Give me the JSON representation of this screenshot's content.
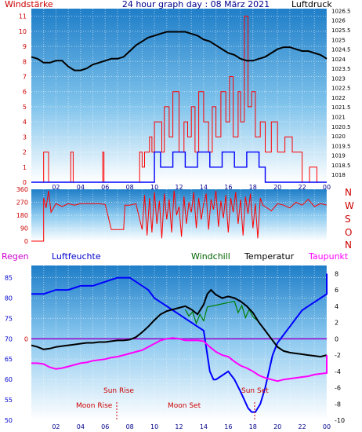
{
  "header": {
    "left_label": "Windstärke",
    "title": "24 hour graph day : 08 März 2021",
    "right_label": "Luftdruck"
  },
  "direction_labels": [
    "N",
    "W",
    "S",
    "O",
    "N"
  ],
  "bottom_header": {
    "regen": "Regen",
    "luftfeuchte": "Luftfeuchte",
    "windchill": "Windchill",
    "temperatur": "Temperatur",
    "taupunkt": "Taupunkt"
  },
  "annotations": {
    "sun_rise": "Sun Rise",
    "sun_set": "Sun Set",
    "moon_rise": "Moon Rise",
    "moon_set": "Moon Set"
  },
  "colors": {
    "panel_top": "#1f7ec8",
    "panel_bottom": "#ffffff",
    "wind": "#ff0000",
    "gust": "#0000ff",
    "pressure": "#000000",
    "humidity": "#0000ff",
    "temperature": "#000000",
    "windchill": "#008000",
    "dewpoint": "#ff00ff",
    "rain_zero": "#cc0000",
    "dir_labels": "#cc0000"
  },
  "chart_data": [
    {
      "type": "line",
      "name": "wind-pressure",
      "x_ticks": [
        "02",
        "04",
        "06",
        "08",
        "10",
        "12",
        "14",
        "16",
        "18",
        "20",
        "22",
        "00"
      ],
      "left_ticks": [
        "0",
        "1",
        "2",
        "3",
        "4",
        "5",
        "6",
        "7",
        "8",
        "9",
        "10",
        "11"
      ],
      "right_ticks": [
        "1018",
        "1018.5",
        "1019",
        "1019.5",
        "1020",
        "1020.5",
        "1021",
        "1021.5",
        "1022",
        "1022.5",
        "1023",
        "1023.5",
        "1024",
        "1024.5",
        "1025",
        "1025.5",
        "1026",
        "1026.5"
      ],
      "ylim_left": [
        0,
        11.5
      ],
      "ylim_right": [
        1017.6,
        1026.6
      ],
      "xlim": [
        0,
        24
      ],
      "pressure": {
        "x": [
          0,
          0.5,
          1,
          1.5,
          2,
          2.5,
          3,
          3.5,
          4,
          4.5,
          5,
          5.5,
          6,
          6.5,
          7,
          7.5,
          8,
          8.5,
          9,
          9.5,
          10,
          10.5,
          11,
          11.5,
          12,
          12.5,
          13,
          13.5,
          14,
          14.5,
          15,
          15.5,
          16,
          16.5,
          17,
          17.5,
          18,
          18.5,
          19,
          19.5,
          20,
          20.5,
          21,
          21.5,
          22,
          22.5,
          23,
          23.5,
          24
        ],
        "y": [
          1024.1,
          1024.0,
          1023.8,
          1023.8,
          1023.9,
          1023.9,
          1023.6,
          1023.4,
          1023.4,
          1023.5,
          1023.7,
          1023.8,
          1023.9,
          1024.0,
          1024.0,
          1024.1,
          1024.4,
          1024.7,
          1024.9,
          1025.1,
          1025.2,
          1025.3,
          1025.4,
          1025.4,
          1025.4,
          1025.4,
          1025.3,
          1025.2,
          1025.0,
          1024.9,
          1024.7,
          1024.5,
          1024.3,
          1024.2,
          1024.0,
          1023.9,
          1023.9,
          1024.0,
          1024.1,
          1024.3,
          1024.5,
          1024.6,
          1024.6,
          1024.5,
          1024.4,
          1024.4,
          1024.3,
          1024.2,
          1024.0
        ]
      },
      "wind": {
        "x": [
          0,
          1.0,
          1.0,
          1.4,
          1.4,
          3.2,
          3.2,
          3.4,
          3.4,
          5.8,
          5.8,
          5.9,
          5.9,
          8.8,
          8.8,
          9.0,
          9.0,
          9.2,
          9.2,
          9.6,
          9.6,
          9.8,
          9.8,
          10.0,
          10.0,
          10.6,
          10.6,
          10.8,
          10.8,
          11.2,
          11.2,
          11.5,
          11.5,
          12.0,
          12.0,
          12.4,
          12.4,
          12.7,
          12.7,
          13.0,
          13.0,
          13.3,
          13.3,
          13.6,
          13.6,
          14.0,
          14.0,
          14.4,
          14.4,
          14.7,
          14.7,
          15.0,
          15.0,
          15.4,
          15.4,
          15.8,
          15.8,
          16.1,
          16.1,
          16.4,
          16.4,
          16.8,
          16.8,
          17.0,
          17.0,
          17.3,
          17.3,
          17.6,
          17.6,
          17.9,
          17.9,
          18.2,
          18.2,
          18.6,
          18.6,
          19.0,
          19.0,
          19.5,
          19.5,
          20.0,
          20.0,
          20.6,
          20.6,
          21.2,
          21.2,
          22.0,
          22.0,
          22.6,
          22.6,
          23.2,
          23.2,
          24
        ],
        "y": [
          0,
          0,
          2,
          2,
          0,
          0,
          2,
          2,
          0,
          0,
          2,
          2,
          0,
          0,
          2,
          2,
          1,
          1,
          2,
          2,
          3,
          3,
          2,
          2,
          4,
          4,
          2,
          2,
          5,
          5,
          3,
          3,
          6,
          6,
          2,
          2,
          4,
          4,
          3,
          3,
          5,
          5,
          2,
          2,
          6,
          6,
          4,
          4,
          2,
          2,
          5,
          5,
          3,
          3,
          6,
          6,
          4,
          4,
          7,
          7,
          3,
          3,
          6,
          6,
          4,
          4,
          11,
          11,
          5,
          5,
          6,
          6,
          3,
          3,
          4,
          4,
          2,
          2,
          4,
          4,
          2,
          2,
          3,
          3,
          2,
          2,
          0,
          0,
          1,
          1,
          0,
          0
        ]
      },
      "gust": {
        "x": [
          0,
          10.0,
          10.0,
          10.5,
          10.5,
          11.5,
          11.5,
          12.5,
          12.5,
          13.5,
          13.5,
          14.5,
          14.5,
          15.5,
          15.5,
          16.5,
          16.5,
          17.5,
          17.5,
          18.5,
          18.5,
          19.0,
          19.0,
          24
        ],
        "y": [
          0,
          0,
          2,
          2,
          1,
          1,
          2,
          2,
          1,
          1,
          2,
          2,
          1,
          1,
          2,
          2,
          1,
          1,
          2,
          2,
          1,
          1,
          0,
          0
        ]
      }
    },
    {
      "type": "line",
      "name": "wind-direction",
      "y_ticks": [
        "0",
        "90",
        "180",
        "270",
        "360"
      ],
      "ylim": [
        0,
        360
      ],
      "xlim": [
        0,
        24
      ],
      "direction": {
        "x": [
          0,
          1.0,
          1.0,
          1.2,
          1.4,
          1.6,
          2.0,
          2.5,
          3.0,
          3.5,
          4.0,
          5.0,
          5.5,
          6.0,
          6.5,
          7.0,
          7.5,
          7.6,
          8.0,
          8.5,
          9.0,
          9.2,
          9.4,
          9.6,
          9.8,
          10.0,
          10.2,
          10.4,
          10.6,
          10.8,
          11.0,
          11.2,
          11.4,
          11.6,
          11.8,
          12.0,
          12.2,
          12.4,
          12.6,
          12.8,
          13.0,
          13.2,
          13.4,
          13.6,
          13.8,
          14.0,
          14.2,
          14.4,
          14.6,
          14.8,
          15.0,
          15.2,
          15.4,
          15.6,
          15.8,
          16.0,
          16.2,
          16.4,
          16.6,
          16.8,
          17.0,
          17.2,
          17.4,
          17.6,
          17.8,
          18.0,
          18.2,
          18.4,
          18.6,
          18.8,
          19.0,
          19.5,
          20.0,
          20.5,
          21.0,
          21.5,
          22.0,
          22.5,
          23.0,
          23.5,
          24
        ],
        "y": [
          0,
          0,
          300,
          230,
          350,
          200,
          260,
          240,
          260,
          250,
          260,
          260,
          260,
          255,
          80,
          80,
          80,
          250,
          250,
          260,
          80,
          320,
          40,
          300,
          60,
          340,
          120,
          280,
          20,
          330,
          150,
          290,
          60,
          350,
          180,
          240,
          30,
          310,
          120,
          270,
          200,
          340,
          90,
          300,
          150,
          260,
          330,
          80,
          290,
          220,
          350,
          100,
          280,
          160,
          320,
          60,
          300,
          200,
          340,
          120,
          290,
          40,
          310,
          190,
          330,
          90,
          260,
          20,
          300,
          250,
          240,
          210,
          260,
          250,
          230,
          270,
          250,
          290,
          240,
          260,
          250
        ]
      }
    },
    {
      "type": "line",
      "name": "humidity-temperature",
      "x_ticks": [
        "02",
        "04",
        "06",
        "08",
        "10",
        "12",
        "14",
        "16",
        "18",
        "20",
        "22",
        "00"
      ],
      "left_ticks": [
        "50",
        "55",
        "60",
        "65",
        "70",
        "75",
        "80",
        "85"
      ],
      "right_ticks": [
        "-10",
        "-8",
        "-6",
        "-4",
        "-2",
        "0",
        "2",
        "4",
        "6",
        "8"
      ],
      "rain_ticks": [
        "0"
      ],
      "ylim_left": [
        50,
        88
      ],
      "ylim_right": [
        -10,
        9
      ],
      "xlim": [
        0,
        24
      ],
      "humidity": {
        "x": [
          0,
          0.5,
          1,
          1.5,
          2,
          2.5,
          3,
          3.5,
          4,
          4.5,
          5,
          5.5,
          6,
          6.5,
          7,
          7.5,
          8,
          8.5,
          9,
          9.5,
          10,
          10.5,
          11,
          11.5,
          12,
          12.5,
          13,
          13.5,
          14,
          14.2,
          14.5,
          14.8,
          15,
          15.5,
          16,
          16.5,
          17,
          17.3,
          17.6,
          17.9,
          18.2,
          18.6,
          19,
          19.3,
          19.6,
          20,
          20.5,
          21,
          21.5,
          22,
          22.5,
          23,
          23.5,
          24,
          24
        ],
        "y": [
          81,
          81,
          81,
          81.5,
          82,
          82,
          82,
          82.5,
          83,
          83,
          83,
          83.5,
          84,
          84.5,
          85,
          85,
          85,
          84,
          83,
          82,
          80,
          79,
          78,
          77,
          76,
          75,
          74,
          73,
          72,
          68,
          62,
          60,
          60,
          61,
          62,
          60,
          57,
          55,
          53,
          52,
          52,
          54,
          58,
          62,
          66,
          69,
          71,
          73,
          75,
          77,
          78,
          79,
          80,
          81,
          86
        ]
      },
      "temperature": {
        "x": [
          0,
          0.5,
          1,
          1.5,
          2,
          2.5,
          3,
          3.5,
          4,
          4.5,
          5,
          5.5,
          6,
          6.5,
          7,
          7.5,
          8,
          8.5,
          9,
          9.5,
          10,
          10.5,
          11,
          11.5,
          12,
          12.5,
          13,
          13.5,
          14,
          14.3,
          14.6,
          15,
          15.5,
          16,
          16.5,
          17,
          17.5,
          18,
          18.5,
          19,
          19.5,
          20,
          20.5,
          21,
          21.5,
          22,
          22.5,
          23,
          23.5,
          24
        ],
        "y": [
          -0.8,
          -1.0,
          -1.3,
          -1.2,
          -1.0,
          -0.9,
          -0.8,
          -0.7,
          -0.6,
          -0.5,
          -0.5,
          -0.4,
          -0.4,
          -0.3,
          -0.2,
          -0.2,
          -0.1,
          0.2,
          0.8,
          1.5,
          2.3,
          3.0,
          3.4,
          3.6,
          3.8,
          4.0,
          3.6,
          3.0,
          4.2,
          5.5,
          6.0,
          5.4,
          5.0,
          5.2,
          5.0,
          4.6,
          4.0,
          3.2,
          2.0,
          1.0,
          0.0,
          -1.0,
          -1.5,
          -1.7,
          -1.8,
          -1.9,
          -2.0,
          -2.1,
          -2.2,
          -2.0
        ]
      },
      "windchill": {
        "x": [
          12.5,
          12.8,
          13.1,
          13.4,
          13.7,
          14.0,
          14.3,
          16.5,
          16.8,
          17.1,
          17.4,
          17.7,
          18.0,
          18.4
        ],
        "y": [
          3.6,
          2.8,
          3.3,
          1.9,
          3.0,
          2.2,
          3.9,
          4.6,
          3.2,
          4.1,
          2.6,
          3.6,
          2.7,
          2.2
        ]
      },
      "dewpoint": {
        "x": [
          0,
          0.5,
          1,
          1.5,
          2,
          2.5,
          3,
          3.5,
          4,
          4.5,
          5,
          5.5,
          6,
          6.5,
          7,
          7.5,
          8,
          8.5,
          9,
          9.5,
          10,
          10.5,
          11,
          11.5,
          12,
          12.5,
          13,
          13.5,
          14,
          14.5,
          15,
          15.5,
          16,
          16.5,
          17,
          17.5,
          18,
          18.5,
          19,
          19.5,
          20,
          20.5,
          21,
          21.5,
          22,
          22.5,
          23,
          23.5,
          24,
          24
        ],
        "y": [
          -3.0,
          -3.0,
          -3.1,
          -3.5,
          -3.7,
          -3.6,
          -3.4,
          -3.2,
          -3.0,
          -2.9,
          -2.7,
          -2.6,
          -2.5,
          -2.3,
          -2.2,
          -2.0,
          -1.8,
          -1.6,
          -1.4,
          -1.0,
          -0.6,
          -0.2,
          0.0,
          0.1,
          0.0,
          -0.2,
          -0.2,
          -0.2,
          -0.3,
          -1.0,
          -1.6,
          -2.0,
          -2.2,
          -2.8,
          -3.3,
          -3.6,
          -4.0,
          -4.5,
          -4.8,
          -5.0,
          -5.2,
          -5.0,
          -4.9,
          -4.8,
          -4.7,
          -4.6,
          -4.4,
          -4.3,
          -4.2,
          -2.0
        ]
      }
    }
  ]
}
